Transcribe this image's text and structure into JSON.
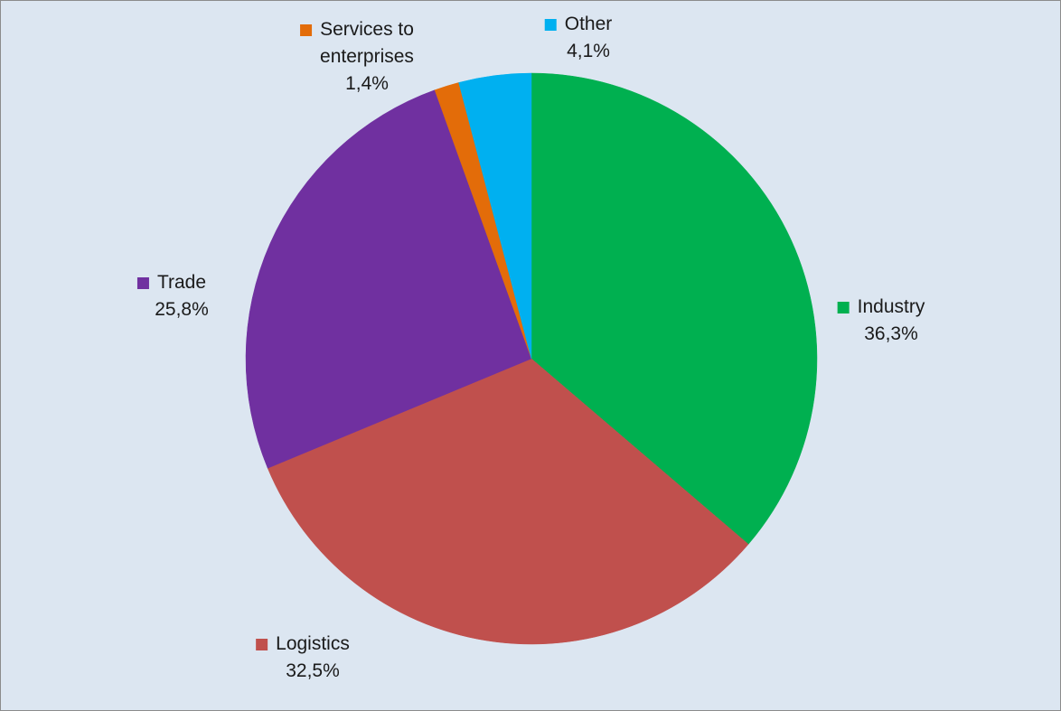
{
  "chart_data": {
    "type": "pie",
    "title": "",
    "start_angle_deg": 0,
    "direction": "clockwise",
    "slices": [
      {
        "name": "Industry",
        "value": 36.3,
        "value_label": "36,3%",
        "color": "#00b050",
        "label_lines": [
          "Industry"
        ]
      },
      {
        "name": "Logistics",
        "value": 32.5,
        "value_label": "32,5%",
        "color": "#c0504d",
        "label_lines": [
          "Logistics"
        ]
      },
      {
        "name": "Trade",
        "value": 25.8,
        "value_label": "25,8%",
        "color": "#7030a0",
        "label_lines": [
          "Trade"
        ]
      },
      {
        "name": "Services to enterprises",
        "value": 1.4,
        "value_label": "1,4%",
        "color": "#e36c09",
        "label_lines": [
          "Services to",
          "enterprises"
        ]
      },
      {
        "name": "Other",
        "value": 4.1,
        "value_label": "4,1%",
        "color": "#00b0f0",
        "label_lines": [
          "Other"
        ]
      }
    ]
  },
  "style": {
    "background": "#dce6f1",
    "border": "#8c8c8c"
  }
}
